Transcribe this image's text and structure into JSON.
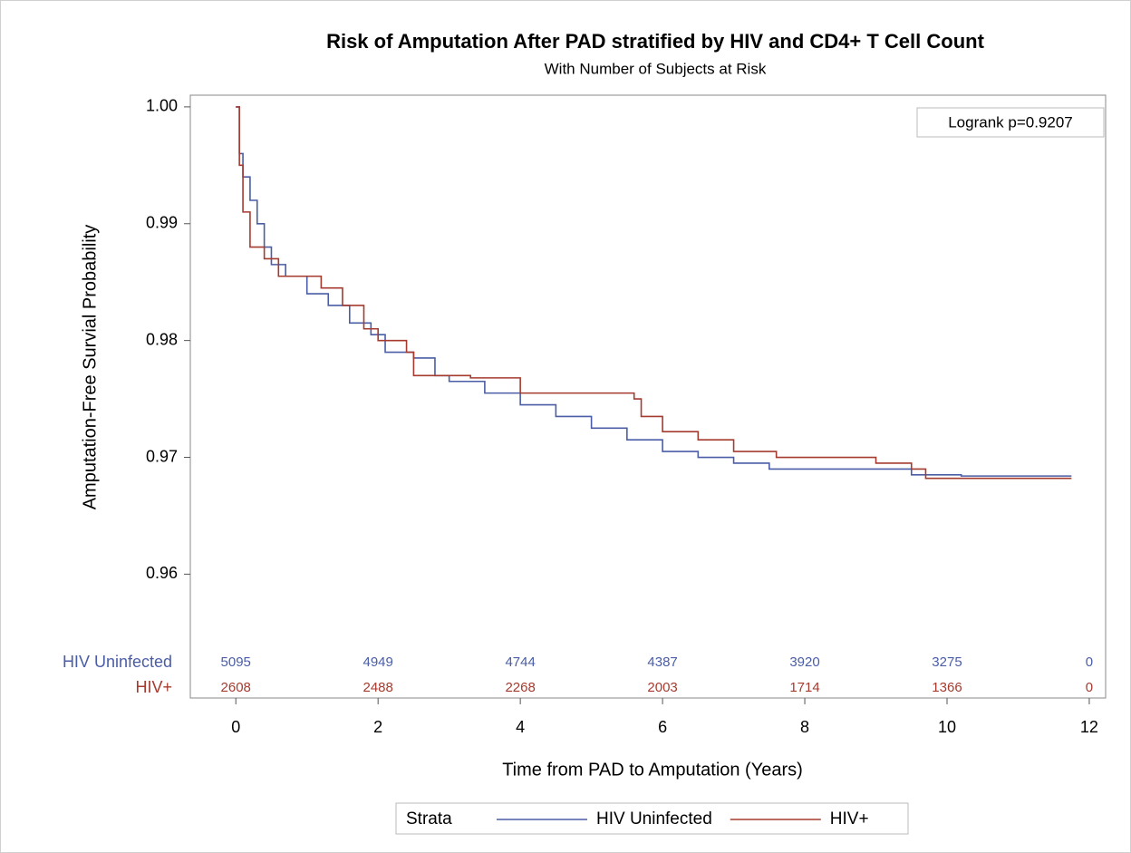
{
  "chart_data": {
    "type": "step",
    "title": "Risk of Amputation After PAD stratified by HIV and CD4+ T Cell Count",
    "subtitle": "With Number of Subjects at Risk",
    "x_label": "Time from PAD to Amputation (Years)",
    "y_label": "Amputation-Free Survial Probability",
    "annotation": "Logrank p=0.9207",
    "legend_title": "Strata",
    "legend_position": "bottom",
    "xlim": [
      -0.64,
      12.23
    ],
    "xticks": [
      0,
      2,
      4,
      6,
      8,
      10,
      12
    ],
    "ylim": [
      0.9494,
      1.001
    ],
    "yticks": [
      {
        "value": 0.96,
        "label": "0.96"
      },
      {
        "value": 0.97,
        "label": "0.97"
      },
      {
        "value": 0.98,
        "label": "0.98"
      },
      {
        "value": 0.99,
        "label": "0.99"
      },
      {
        "value": 1.0,
        "label": "1.00"
      }
    ],
    "series": [
      {
        "name": "HIV Uninfected",
        "color": "#4a5da6",
        "x": [
          0,
          0.05,
          0.1,
          0.2,
          0.3,
          0.4,
          0.5,
          0.7,
          1.0,
          1.3,
          1.6,
          1.9,
          2.1,
          2.5,
          2.8,
          3.0,
          3.5,
          4.0,
          4.5,
          5.0,
          5.5,
          6.0,
          6.5,
          7.0,
          7.5,
          9.5,
          10.2,
          11.75
        ],
        "values": [
          1.0,
          0.996,
          0.994,
          0.992,
          0.99,
          0.988,
          0.9865,
          0.9855,
          0.984,
          0.983,
          0.9815,
          0.9805,
          0.979,
          0.9785,
          0.977,
          0.9765,
          0.9755,
          0.9745,
          0.9735,
          0.9725,
          0.9715,
          0.9705,
          0.97,
          0.9695,
          0.969,
          0.9685,
          0.9684,
          0.9684
        ],
        "at_risk": [
          5095,
          4949,
          4744,
          4387,
          3920,
          3275,
          0
        ]
      },
      {
        "name": "HIV+",
        "color": "#a53b2f",
        "x": [
          0,
          0.05,
          0.1,
          0.2,
          0.4,
          0.6,
          1.0,
          1.2,
          1.5,
          1.8,
          2.0,
          2.4,
          2.5,
          3.0,
          3.3,
          4.0,
          5.6,
          5.7,
          6.0,
          6.5,
          7.0,
          7.6,
          9.0,
          9.5,
          9.7,
          11.75
        ],
        "values": [
          1.0,
          0.995,
          0.991,
          0.988,
          0.987,
          0.9855,
          0.9855,
          0.9845,
          0.983,
          0.981,
          0.98,
          0.979,
          0.977,
          0.977,
          0.9768,
          0.9755,
          0.975,
          0.9735,
          0.9722,
          0.9715,
          0.9705,
          0.97,
          0.9695,
          0.969,
          0.9682,
          0.9682
        ],
        "at_risk": [
          2608,
          2488,
          2268,
          2003,
          1714,
          1366,
          0
        ]
      }
    ]
  }
}
